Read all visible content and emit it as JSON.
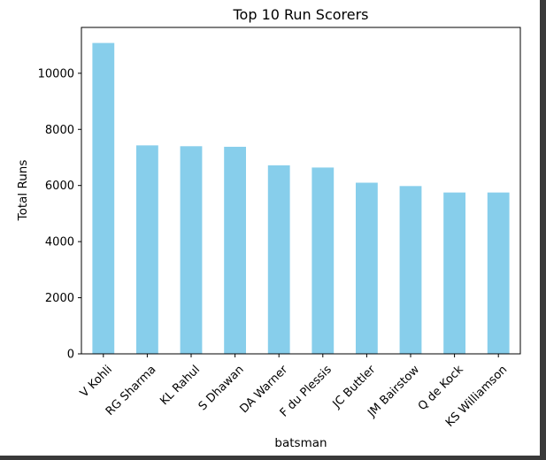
{
  "chart_data": {
    "type": "bar",
    "title": "Top 10 Run Scorers",
    "xlabel": "batsman",
    "ylabel": "Total Runs",
    "categories": [
      "V Kohli",
      "RG Sharma",
      "KL Rahul",
      "S Dhawan",
      "DA Warner",
      "F du Plessis",
      "JC Buttler",
      "JM Bairstow",
      "Q de Kock",
      "KS Williamson"
    ],
    "values": [
      11080,
      7430,
      7400,
      7380,
      6720,
      6640,
      6100,
      5980,
      5750,
      5750
    ],
    "ylim": [
      0,
      11634
    ],
    "yticks": [
      0,
      2000,
      4000,
      6000,
      8000,
      10000
    ],
    "bar_color": "#87ceeb",
    "grid": false,
    "legend": "none"
  }
}
